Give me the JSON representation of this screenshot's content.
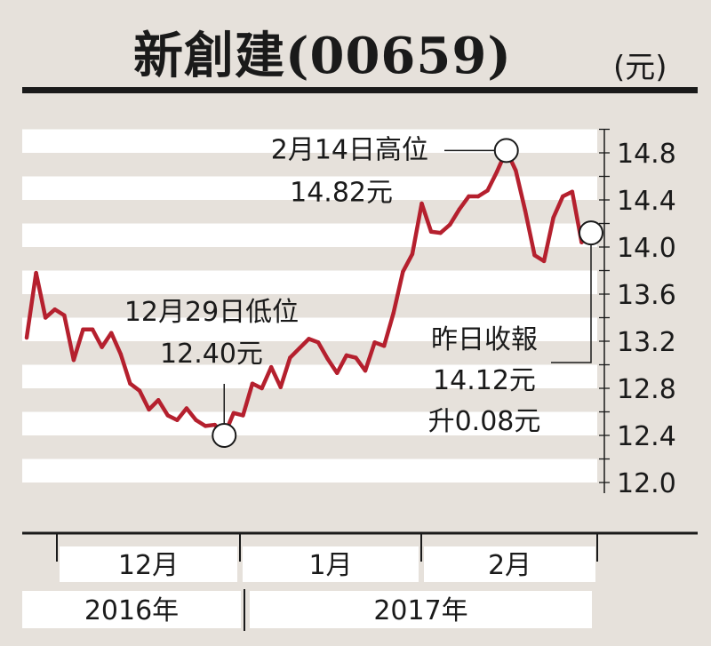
{
  "header": {
    "title": "新創建(00659)",
    "unit": "(元)"
  },
  "chart_data": {
    "type": "line",
    "title": "新創建(00659)",
    "unit": "(元)",
    "ylim": [
      12.0,
      15.0
    ],
    "yticks": [
      12.0,
      12.4,
      12.8,
      13.2,
      13.6,
      14.0,
      14.4,
      14.8
    ],
    "ytick_labels": [
      "12.0",
      "12.4",
      "12.8",
      "13.2",
      "13.6",
      "14.0",
      "14.4",
      "14.8"
    ],
    "grid": "alternating-horizontal-bands",
    "line_color": "#b5202e",
    "months": [
      "12月",
      "1月",
      "2月"
    ],
    "years": [
      "2016年",
      "2017年"
    ],
    "series": [
      {
        "values": [
          13.23,
          13.78,
          13.4,
          13.47,
          13.42,
          13.04,
          13.3,
          13.3,
          13.15,
          13.27,
          13.09,
          12.84,
          12.78,
          12.62,
          12.7,
          12.57,
          12.53,
          12.63,
          12.53,
          12.48,
          12.49,
          12.4,
          12.59,
          12.57,
          12.84,
          12.8,
          12.98,
          12.81,
          13.06,
          13.14,
          13.22,
          13.19,
          13.05,
          12.93,
          13.08,
          13.06,
          12.95,
          13.19,
          13.16,
          13.44,
          13.79,
          13.94,
          14.37,
          14.13,
          14.12,
          14.19,
          14.32,
          14.43,
          14.43,
          14.48,
          14.64,
          14.82,
          14.65,
          14.31,
          13.93,
          13.88,
          14.25,
          14.43,
          14.47,
          14.04,
          14.12
        ]
      }
    ],
    "annotations": [
      {
        "label_line1": "2月14日高位",
        "label_line2": "14.82元",
        "value": 14.82
      },
      {
        "label_line1": "12月29日低位",
        "label_line2": "12.40元",
        "value": 12.4
      },
      {
        "label_line1": "昨日收報",
        "label_line2": "14.12元",
        "label_line3": "升0.08元",
        "value": 14.12
      }
    ]
  }
}
